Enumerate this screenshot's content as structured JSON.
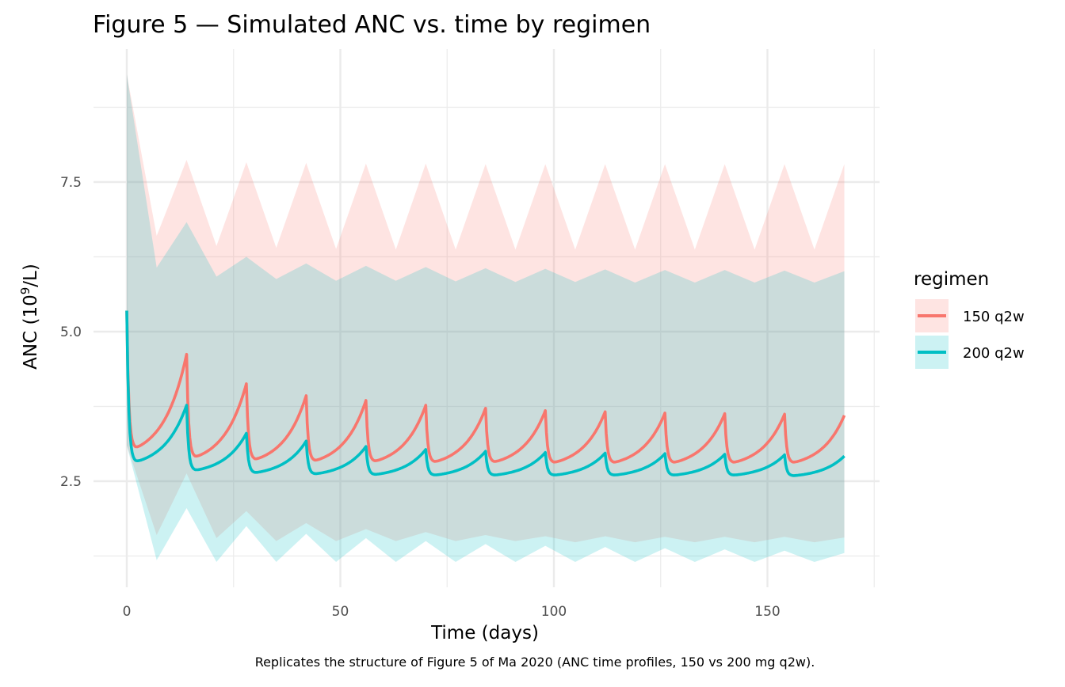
{
  "chart_data": {
    "type": "line",
    "title": "Figure 5 — Simulated ANC vs. time by regimen",
    "xlabel": "Time (days)",
    "ylabel_main": "ANC (10",
    "ylabel_sup": "9",
    "ylabel_end": "/L)",
    "caption": "Replicates the structure of Figure 5 of Ma 2020 (ANC time profiles, 150 vs 200 mg q2w).",
    "xlim": [
      -4,
      176
    ],
    "ylim": [
      0.95,
      9.55
    ],
    "x_ticks": [
      0,
      50,
      100,
      150
    ],
    "x_tick_labels": [
      "0",
      "50",
      "100",
      "150"
    ],
    "x_minor": [
      25,
      75,
      125,
      175
    ],
    "y_ticks": [
      2.5,
      5.0,
      7.5
    ],
    "y_tick_labels": [
      "2.5",
      "5.0",
      "7.5"
    ],
    "y_minor": [
      1.25,
      3.75,
      6.25,
      8.75
    ],
    "grid": true,
    "legend": {
      "title": "regimen",
      "placement": "right"
    },
    "ribbon_x": [
      0,
      7,
      14,
      21,
      28,
      35,
      42,
      49,
      56,
      63,
      70,
      77,
      84,
      91,
      98,
      105,
      112,
      119,
      126,
      133,
      140,
      147,
      154,
      161,
      168
    ],
    "series": [
      {
        "name": "150 q2w",
        "color": "#F8766D",
        "start": 5.35,
        "dose_interval_days": 14,
        "peaks": [
          4.62,
          4.13,
          3.93,
          3.85,
          3.77,
          3.72,
          3.68,
          3.66,
          3.64,
          3.63,
          3.62,
          3.6
        ],
        "troughs": [
          3.05,
          2.9,
          2.86,
          2.84,
          2.83,
          2.82,
          2.82,
          2.81,
          2.81,
          2.81,
          2.81,
          2.81
        ],
        "upper": [
          9.3,
          6.6,
          7.87,
          6.43,
          7.83,
          6.4,
          7.82,
          6.38,
          7.81,
          6.37,
          7.81,
          6.37,
          7.8,
          6.37,
          7.8,
          6.37,
          7.8,
          6.37,
          7.8,
          6.37,
          7.8,
          6.37,
          7.8,
          6.37,
          7.8
        ],
        "lower": [
          3.1,
          1.6,
          2.63,
          1.55,
          2.0,
          1.5,
          1.8,
          1.5,
          1.7,
          1.5,
          1.65,
          1.5,
          1.6,
          1.5,
          1.58,
          1.48,
          1.58,
          1.48,
          1.57,
          1.48,
          1.57,
          1.48,
          1.57,
          1.48,
          1.56
        ]
      },
      {
        "name": "200 q2w",
        "color": "#00BFC4",
        "start": 5.35,
        "dose_interval_days": 14,
        "peaks": [
          3.77,
          3.3,
          3.17,
          3.08,
          3.03,
          3.0,
          2.98,
          2.97,
          2.96,
          2.95,
          2.94,
          2.92
        ],
        "troughs": [
          2.82,
          2.68,
          2.64,
          2.62,
          2.61,
          2.6,
          2.6,
          2.6,
          2.6,
          2.6,
          2.6,
          2.59
        ],
        "upper": [
          9.3,
          6.07,
          6.83,
          5.92,
          6.25,
          5.88,
          6.14,
          5.85,
          6.1,
          5.85,
          6.08,
          5.84,
          6.06,
          5.83,
          6.05,
          5.83,
          6.04,
          5.82,
          6.03,
          5.82,
          6.03,
          5.82,
          6.02,
          5.82,
          6.01
        ],
        "lower": [
          3.1,
          1.18,
          2.05,
          1.15,
          1.75,
          1.15,
          1.62,
          1.15,
          1.55,
          1.15,
          1.5,
          1.15,
          1.45,
          1.15,
          1.42,
          1.15,
          1.4,
          1.15,
          1.38,
          1.15,
          1.36,
          1.15,
          1.34,
          1.15,
          1.3
        ]
      }
    ]
  }
}
